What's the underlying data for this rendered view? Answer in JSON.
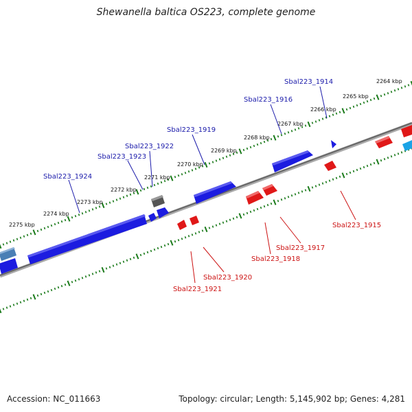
{
  "title": "Shewanella baltica OS223, complete genome",
  "footer": {
    "accession": "Accession: NC_011663",
    "summary": "Topology: circular; Length: 5,145,902 bp; Genes: 4,281"
  },
  "colors": {
    "forward_gene": "#1c1ce0",
    "reverse_gene": "#e01818",
    "forward_label": "#1a1aaa",
    "reverse_label": "#cc1111",
    "backbone": "#888888",
    "tick": "#1a7a1a",
    "other_gene": "#555555",
    "light_blue_gene": "#1aa3e6"
  },
  "ticks": [
    {
      "label": "2264 kbp"
    },
    {
      "label": "2265 kbp"
    },
    {
      "label": "2266 kbp"
    },
    {
      "label": "2267 kbp"
    },
    {
      "label": "2268 kbp"
    },
    {
      "label": "2269 kbp"
    },
    {
      "label": "2270 kbp"
    },
    {
      "label": "2271 kbp"
    },
    {
      "label": "2272 kbp"
    },
    {
      "label": "2273 kbp"
    },
    {
      "label": "2274 kbp"
    },
    {
      "label": "2275 kbp"
    }
  ],
  "forward_labels": [
    {
      "name": "Sbal223_1914"
    },
    {
      "name": "Sbal223_1916"
    },
    {
      "name": "Sbal223_1919"
    },
    {
      "name": "Sbal223_1922"
    },
    {
      "name": "Sbal223_1923"
    },
    {
      "name": "Sbal223_1924"
    }
  ],
  "reverse_labels": [
    {
      "name": "Sbal223_1915"
    },
    {
      "name": "Sbal223_1917"
    },
    {
      "name": "Sbal223_1918"
    },
    {
      "name": "Sbal223_1920"
    },
    {
      "name": "Sbal223_1921"
    }
  ]
}
